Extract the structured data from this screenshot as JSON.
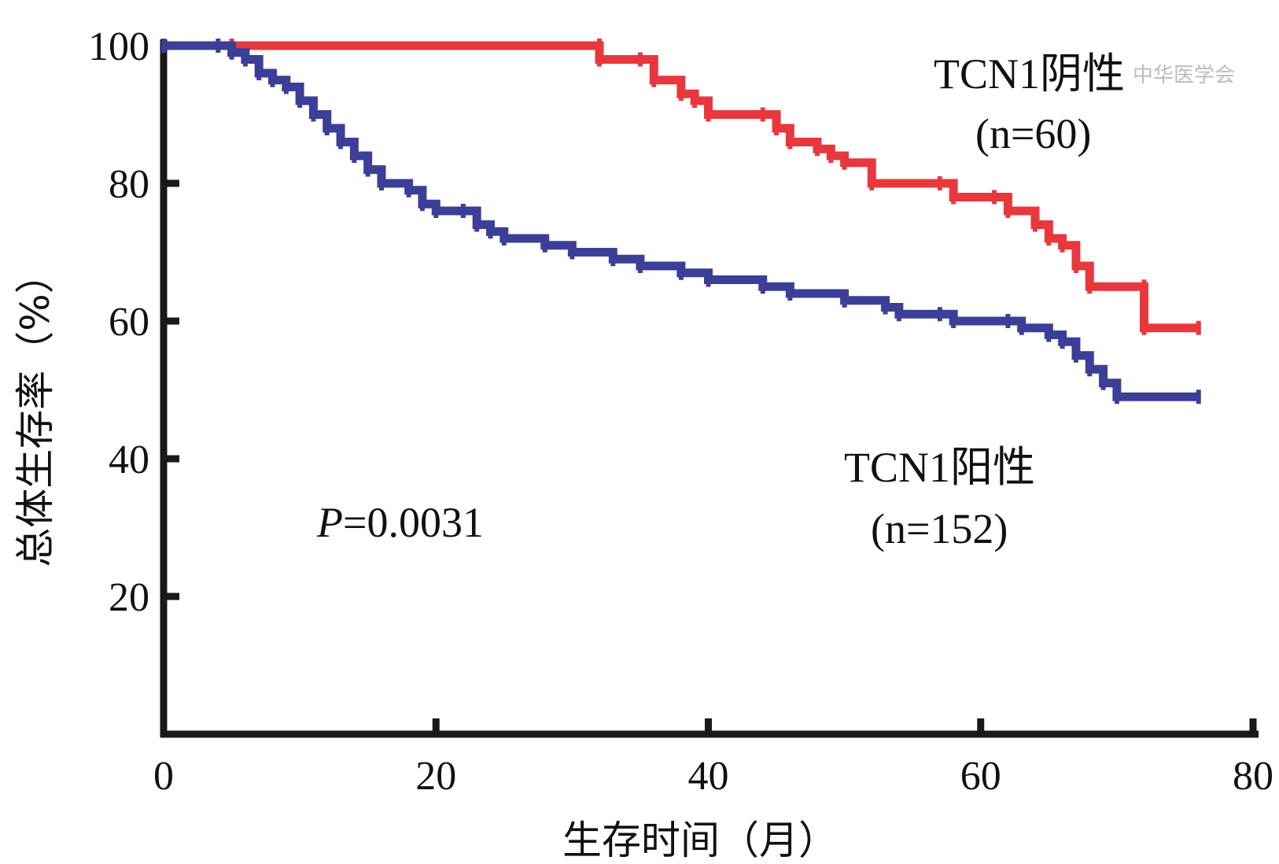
{
  "chart_data": {
    "type": "line",
    "xlabel": "生存时间（月）",
    "ylabel": "总体生存率（%）",
    "xlim": [
      0,
      80
    ],
    "ylim": [
      0,
      100
    ],
    "x_ticks": [
      "0",
      "20",
      "40",
      "60",
      "80"
    ],
    "y_ticks": [
      "20",
      "40",
      "60",
      "80",
      "100"
    ],
    "p_value_label": {
      "prefix": "P",
      "text": "=0.0031"
    },
    "series": [
      {
        "name": "TCN1阴性",
        "n_label": "(n=60)",
        "color": "#e8383d",
        "points": [
          [
            0,
            100
          ],
          [
            5,
            100
          ],
          [
            32,
            100
          ],
          [
            32,
            98
          ],
          [
            35,
            98
          ],
          [
            36,
            95
          ],
          [
            38,
            93
          ],
          [
            39,
            92
          ],
          [
            40,
            90
          ],
          [
            44,
            90
          ],
          [
            45,
            88
          ],
          [
            46,
            86
          ],
          [
            48,
            85
          ],
          [
            49,
            84
          ],
          [
            50,
            83
          ],
          [
            52,
            80
          ],
          [
            57,
            80
          ],
          [
            58,
            78
          ],
          [
            61,
            78
          ],
          [
            62,
            76
          ],
          [
            64,
            74
          ],
          [
            65,
            72
          ],
          [
            66,
            71
          ],
          [
            67,
            68
          ],
          [
            68,
            65
          ],
          [
            72,
            65
          ],
          [
            72,
            59
          ],
          [
            76,
            59
          ]
        ]
      },
      {
        "name": "TCN1阳性",
        "n_label": "(n=152)",
        "color": "#3a3f97",
        "points": [
          [
            0,
            100
          ],
          [
            4,
            100
          ],
          [
            5,
            99
          ],
          [
            6,
            98
          ],
          [
            7,
            96
          ],
          [
            8,
            95
          ],
          [
            9,
            94
          ],
          [
            10,
            92
          ],
          [
            11,
            90
          ],
          [
            12,
            88
          ],
          [
            13,
            86
          ],
          [
            14,
            84
          ],
          [
            15,
            82
          ],
          [
            16,
            80
          ],
          [
            18,
            79
          ],
          [
            19,
            77
          ],
          [
            20,
            76
          ],
          [
            22,
            76
          ],
          [
            23,
            74
          ],
          [
            24,
            73
          ],
          [
            25,
            72
          ],
          [
            28,
            71
          ],
          [
            30,
            70
          ],
          [
            33,
            69
          ],
          [
            35,
            68
          ],
          [
            38,
            67
          ],
          [
            40,
            66
          ],
          [
            44,
            65
          ],
          [
            46,
            64
          ],
          [
            50,
            63
          ],
          [
            53,
            62
          ],
          [
            54,
            61
          ],
          [
            57,
            61
          ],
          [
            58,
            60
          ],
          [
            62,
            60
          ],
          [
            63,
            59
          ],
          [
            65,
            58
          ],
          [
            66,
            57
          ],
          [
            67,
            55
          ],
          [
            68,
            53
          ],
          [
            69,
            51
          ],
          [
            70,
            49
          ],
          [
            76,
            49
          ]
        ]
      }
    ],
    "watermark": "中华医学会"
  }
}
